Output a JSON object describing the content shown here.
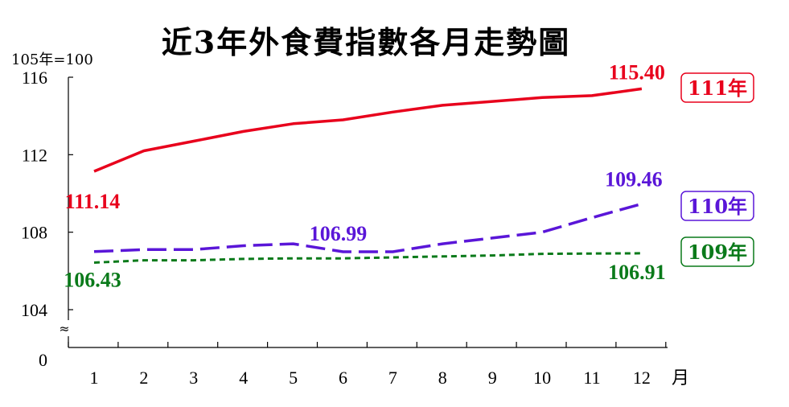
{
  "chart_title": "近3年外食費指數各月走勢圖",
  "index_base": "105年=100",
  "chart_data": {
    "type": "line",
    "title": "近3年外食費指數各月走勢圖",
    "ylabel": "105年=100",
    "xunit": "月",
    "categories": [
      1,
      2,
      3,
      4,
      5,
      6,
      7,
      8,
      9,
      10,
      11,
      12
    ],
    "y_ticks": [
      "116",
      "112",
      "108",
      "104",
      "0"
    ],
    "y_tick_values": [
      116,
      112,
      108,
      104
    ],
    "ylim": [
      102,
      116
    ],
    "axis_break": "≈",
    "series": [
      {
        "name": "111年",
        "color": "#e8001c",
        "style": "solid",
        "values": [
          111.14,
          112.2,
          112.7,
          113.2,
          113.6,
          113.8,
          114.2,
          114.55,
          114.75,
          114.95,
          115.05,
          115.4
        ]
      },
      {
        "name": "110年",
        "color": "#5a16d8",
        "style": "dashed",
        "values": [
          107.0,
          107.1,
          107.1,
          107.3,
          107.4,
          106.99,
          106.99,
          107.4,
          107.7,
          108.0,
          108.75,
          109.46
        ]
      },
      {
        "name": "109年",
        "color": "#0a7a1a",
        "style": "dotted",
        "values": [
          106.43,
          106.55,
          106.55,
          106.62,
          106.65,
          106.65,
          106.7,
          106.75,
          106.8,
          106.88,
          106.9,
          106.91
        ]
      }
    ],
    "annotations": [
      {
        "series": 0,
        "index": 0,
        "text": "111.14"
      },
      {
        "series": 0,
        "index": 11,
        "text": "115.40"
      },
      {
        "series": 1,
        "index": 5,
        "text": "106.99"
      },
      {
        "series": 1,
        "index": 11,
        "text": "109.46"
      },
      {
        "series": 2,
        "index": 0,
        "text": "106.43"
      },
      {
        "series": 2,
        "index": 11,
        "text": "106.91"
      }
    ],
    "grid": false,
    "legend": "right"
  }
}
